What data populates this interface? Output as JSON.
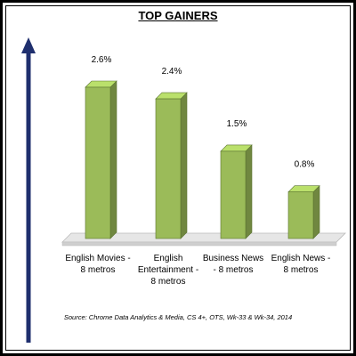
{
  "chart_data": {
    "type": "bar",
    "title": "TOP GAINERS",
    "categories": [
      "English Movies - 8 metros",
      "English Entertainment - 8 metros",
      "Business News - 8 metros",
      "English News - 8 metros"
    ],
    "values": [
      2.6,
      2.4,
      1.5,
      0.8
    ],
    "value_labels": [
      "2.6%",
      "2.4%",
      "1.5%",
      "0.8%"
    ],
    "color": "#9bbb59",
    "source": "Source: Chrome Data Analytics & Media, CS 4+, OTS, Wk-33 & Wk-34, 2014"
  }
}
